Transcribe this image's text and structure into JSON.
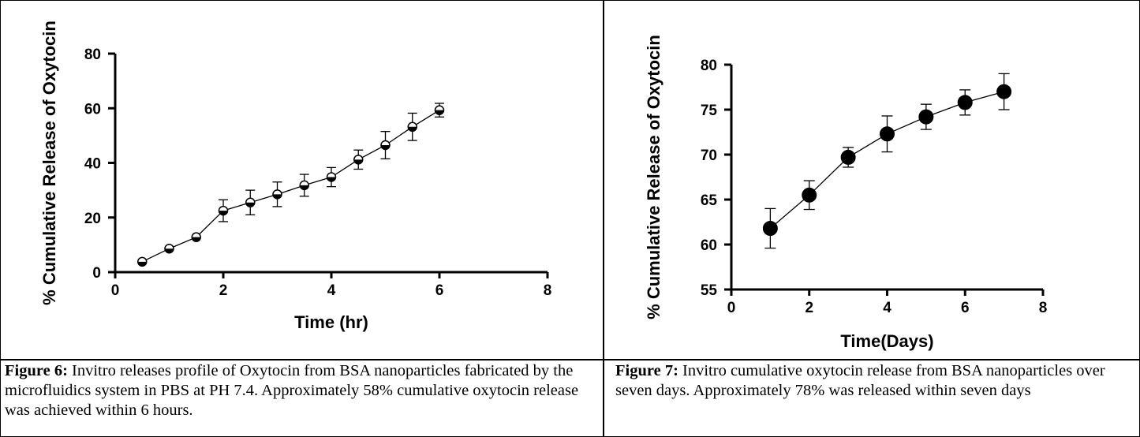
{
  "captions": [
    {
      "label": "Figure 6:",
      "text": " Invitro releases profile of Oxytocin from BSA nanoparticles fabricated by the microfluidics system in PBS at PH 7.4. Approximately 58% cumulative oxytocin release was achieved within 6 hours."
    },
    {
      "label": "Figure 7:",
      "text": " Invitro cumulative oxytocin release from BSA nanoparticles over seven days. Approximately 78% was released within seven days"
    }
  ],
  "chart_data": [
    {
      "type": "line",
      "title": "",
      "xlabel": "Time (hr)",
      "ylabel": "% Cumulative Release of Oxytocin",
      "xlim": [
        0,
        8
      ],
      "ylim": [
        0,
        80
      ],
      "x_ticks": [
        0,
        2,
        4,
        6,
        8
      ],
      "y_ticks": [
        0,
        20,
        40,
        60,
        80
      ],
      "grid": false,
      "marker": "half-filled-circle",
      "series": [
        {
          "x": [
            0.5,
            1,
            1.5,
            2,
            2.5,
            3,
            3.5,
            4,
            4.5,
            5,
            5.5,
            6
          ],
          "y": [
            3.8,
            8.6,
            12.8,
            22.5,
            25.5,
            28.5,
            31.8,
            34.8,
            41.2,
            46.5,
            53.2,
            59.3
          ],
          "error": [
            0,
            0,
            0,
            4,
            4.5,
            4.5,
            4,
            3.5,
            3.5,
            5,
            5,
            2.5
          ]
        }
      ]
    },
    {
      "type": "line",
      "title": "",
      "xlabel": "Time(Days)",
      "ylabel": "% Cumulative Release of Oxytocin",
      "xlim": [
        0,
        8
      ],
      "ylim": [
        55,
        80
      ],
      "x_ticks": [
        0,
        2,
        4,
        6,
        8
      ],
      "y_ticks": [
        55,
        60,
        65,
        70,
        75,
        80
      ],
      "grid": false,
      "marker": "filled-circle",
      "series": [
        {
          "x": [
            1,
            2,
            3,
            4,
            5,
            6,
            7
          ],
          "y": [
            61.8,
            65.5,
            69.7,
            72.3,
            74.2,
            75.8,
            77.0
          ],
          "error": [
            2.2,
            1.6,
            1.1,
            2.0,
            1.4,
            1.4,
            2.0
          ]
        }
      ]
    }
  ]
}
